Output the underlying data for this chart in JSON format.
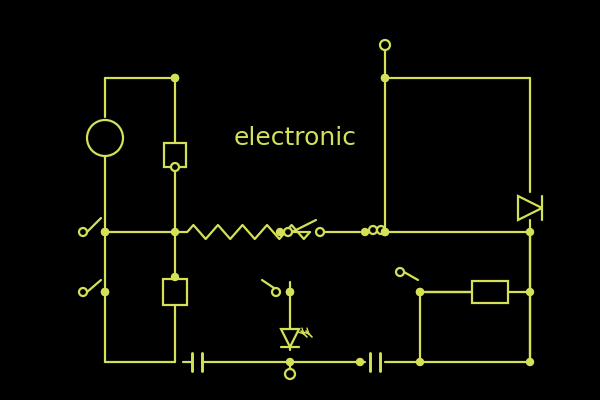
{
  "bg_color": "#000000",
  "line_color": "#d4e157",
  "title": "electronic",
  "title_color": "#d4e157",
  "title_fontsize": 18,
  "figsize": [
    6.0,
    4.0
  ],
  "dpi": 100
}
